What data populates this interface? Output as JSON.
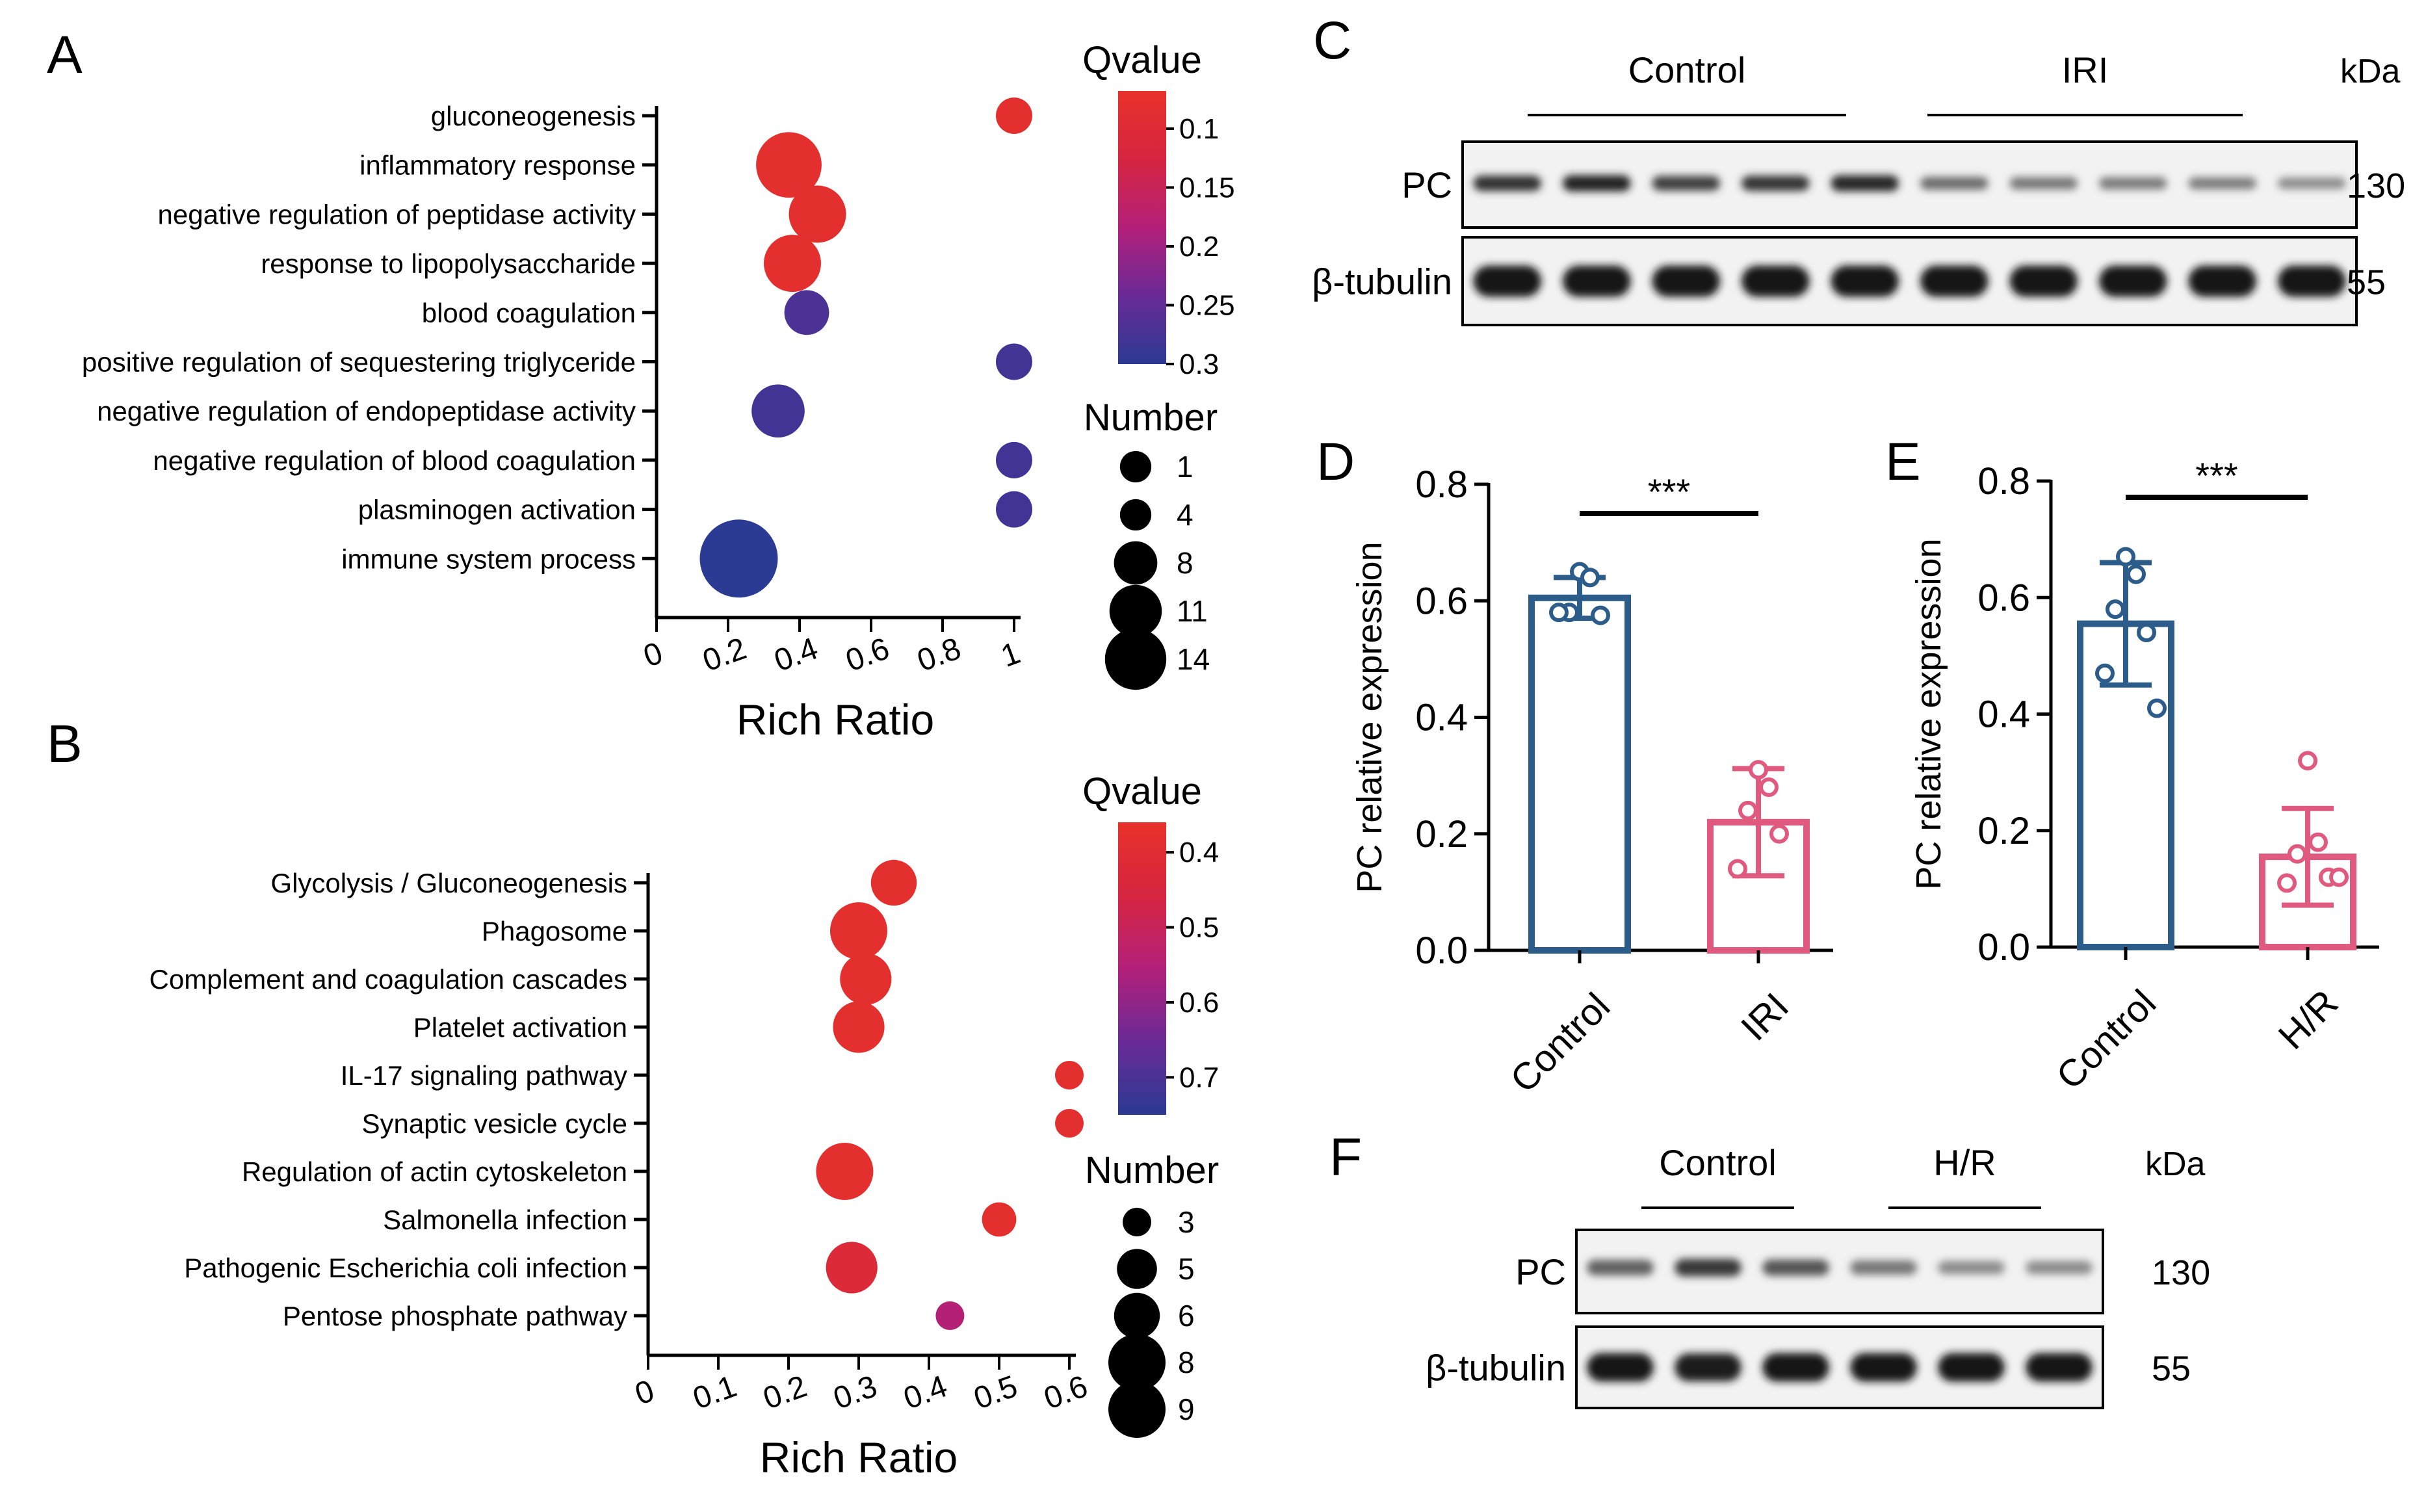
{
  "panel_letters": {
    "a": "A",
    "b": "B",
    "c": "C",
    "d": "D",
    "e": "E",
    "f": "F"
  },
  "colors": {
    "high_significance": "#e8312a",
    "low_significance": "#2b3a93",
    "control_bar": "#2b5c8a",
    "injury_bar": "#e05a80",
    "axis": "#000000"
  },
  "chart_data": [
    {
      "panel": "A",
      "type": "scatter",
      "subtype": "bubble",
      "title": "",
      "xlabel": "Rich Ratio",
      "ylabel": "",
      "xlim": [
        0,
        1
      ],
      "x_ticks": [
        "0",
        "0.2",
        "0.4",
        "0.6",
        "0.8",
        "1"
      ],
      "categories": [
        "gluconeogenesis",
        "inflammatory response",
        "negative regulation of peptidase activity",
        "response to lipopolysaccharide",
        "blood coagulation",
        "positive regulation of sequestering triglyceride",
        "negative regulation of endopeptidase activity",
        "negative regulation of blood coagulation",
        "plasminogen activation",
        "immune system process"
      ],
      "rich_ratio": [
        1.0,
        0.37,
        0.45,
        0.38,
        0.42,
        1.0,
        0.34,
        1.0,
        1.0,
        0.23
      ],
      "number": [
        4,
        11,
        9,
        9,
        6,
        4,
        8,
        4,
        4,
        14
      ],
      "qvalue": [
        0.08,
        0.08,
        0.08,
        0.08,
        0.27,
        0.28,
        0.28,
        0.28,
        0.28,
        0.3
      ],
      "color_legend": {
        "title": "Qvalue",
        "ticks": [
          "0.1",
          "0.15",
          "0.2",
          "0.25",
          "0.3"
        ],
        "range": [
          0.068,
          0.3
        ]
      },
      "size_legend": {
        "title": "Number",
        "ticks": [
          "1",
          "4",
          "8",
          "11",
          "14"
        ]
      }
    },
    {
      "panel": "B",
      "type": "scatter",
      "subtype": "bubble",
      "title": "",
      "xlabel": "Rich Ratio",
      "ylabel": "",
      "xlim": [
        0,
        0.6
      ],
      "x_ticks": [
        "0",
        "0.1",
        "0.2",
        "0.3",
        "0.4",
        "0.5",
        "0.6"
      ],
      "categories": [
        "Glycolysis / Gluconeogenesis",
        "Phagosome",
        "Complement and coagulation cascades",
        "Platelet activation",
        "IL-17 signaling pathway",
        "Synaptic vesicle cycle",
        "Regulation of actin cytoskeleton",
        "Salmonella infection",
        "Pathogenic Escherichia coli infection",
        "Pentose phosphate pathway"
      ],
      "rich_ratio": [
        0.35,
        0.3,
        0.31,
        0.3,
        0.6,
        0.6,
        0.28,
        0.5,
        0.29,
        0.43
      ],
      "number": [
        6,
        8,
        7,
        7,
        3,
        3,
        8,
        4,
        7,
        3
      ],
      "qvalue": [
        0.38,
        0.38,
        0.38,
        0.38,
        0.38,
        0.38,
        0.38,
        0.38,
        0.42,
        0.55
      ],
      "color_legend": {
        "title": "Qvalue",
        "ticks": [
          "0.4",
          "0.5",
          "0.6",
          "0.7"
        ],
        "range": [
          0.36,
          0.75
        ]
      },
      "size_legend": {
        "title": "Number",
        "ticks": [
          "3",
          "5",
          "6",
          "8",
          "9"
        ]
      }
    },
    {
      "panel": "D",
      "type": "bar",
      "title": "",
      "xlabel": "",
      "ylabel": "PC relative expression",
      "ylim": [
        0,
        0.8
      ],
      "y_ticks": [
        "0.0",
        "0.2",
        "0.4",
        "0.6",
        "0.8"
      ],
      "categories": [
        "Control",
        "IRI"
      ],
      "values": [
        0.605,
        0.22
      ],
      "error": [
        0.035,
        0.092
      ],
      "points": [
        [
          0.65,
          0.64,
          0.58,
          0.575,
          0.58
        ],
        [
          0.31,
          0.28,
          0.24,
          0.2,
          0.14
        ]
      ],
      "significance": "***"
    },
    {
      "panel": "E",
      "type": "bar",
      "title": "",
      "xlabel": "",
      "ylabel": "PC relative expression",
      "ylim": [
        0,
        0.8
      ],
      "y_ticks": [
        "0.0",
        "0.2",
        "0.4",
        "0.6",
        "0.8"
      ],
      "categories": [
        "Control",
        "H/R"
      ],
      "values": [
        0.555,
        0.155
      ],
      "error": [
        0.105,
        0.083
      ],
      "points": [
        [
          0.67,
          0.64,
          0.58,
          0.54,
          0.47,
          0.41
        ],
        [
          0.32,
          0.18,
          0.16,
          0.12,
          0.11,
          0.12
        ]
      ],
      "significance": "***"
    }
  ],
  "blot_c": {
    "groups": [
      "Control",
      "IRI"
    ],
    "unit": "kDa",
    "rows": [
      {
        "label": "PC",
        "kda": "130",
        "intensity": [
          0.82,
          0.92,
          0.75,
          0.8,
          0.9,
          0.48,
          0.42,
          0.4,
          0.38,
          0.3
        ]
      },
      {
        "label": "β-tubulin",
        "kda": "55",
        "intensity": [
          1,
          1,
          1,
          1,
          1,
          1,
          1,
          1,
          1,
          1
        ]
      }
    ]
  },
  "blot_f": {
    "groups": [
      "Control",
      "H/R"
    ],
    "unit": "kDa",
    "rows": [
      {
        "label": "PC",
        "kda": "130",
        "intensity": [
          0.55,
          0.78,
          0.62,
          0.42,
          0.3,
          0.3
        ]
      },
      {
        "label": "β-tubulin",
        "kda": "55",
        "intensity": [
          1,
          0.95,
          1,
          1,
          1,
          1
        ]
      }
    ]
  }
}
